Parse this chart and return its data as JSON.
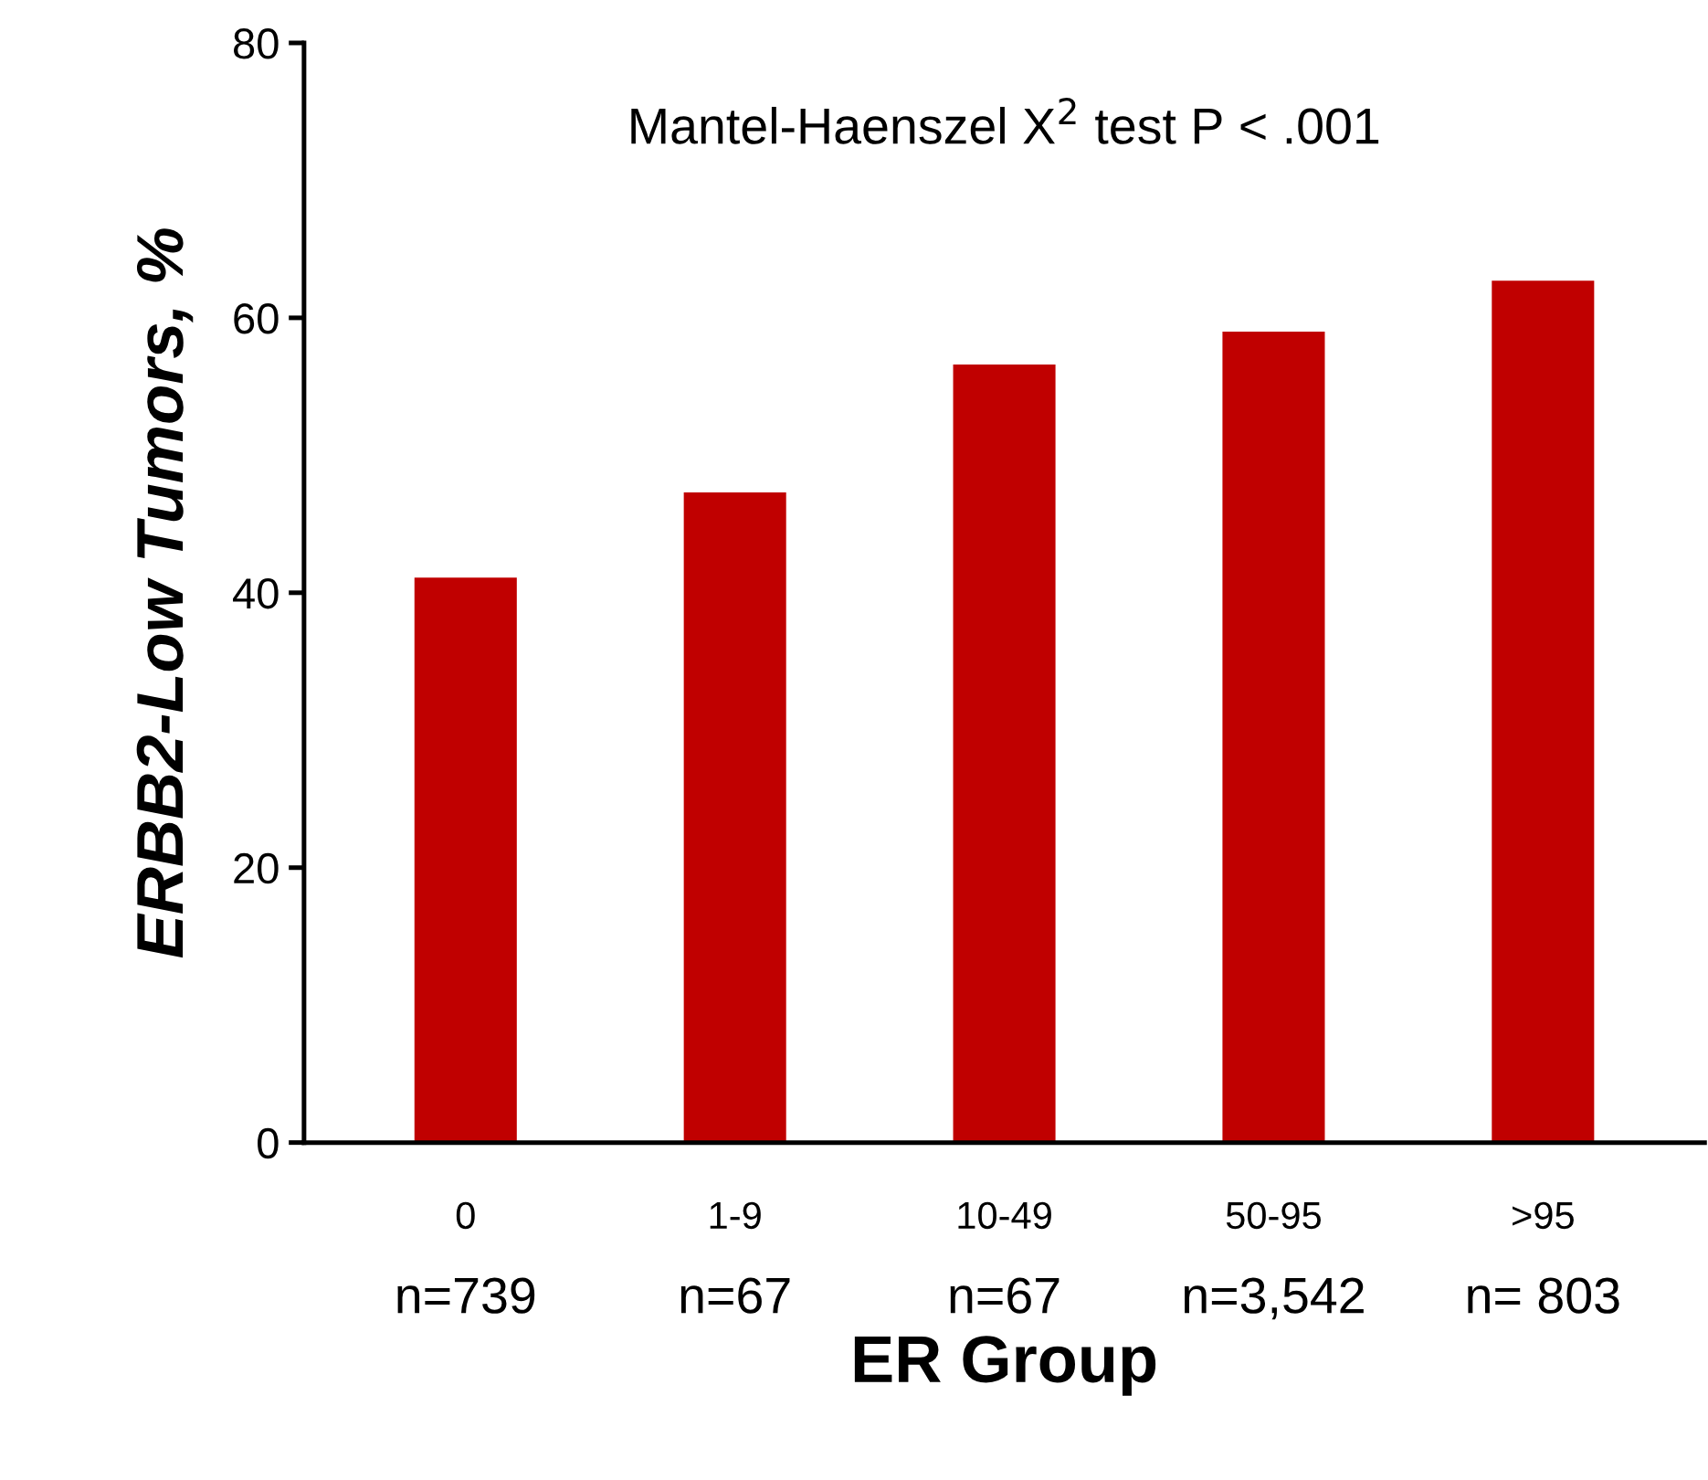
{
  "chart_data": {
    "type": "bar",
    "categories": [
      "0\nn=739",
      "1-9\nn=67",
      "10-49\nn=67",
      "50-95\nn=3,542",
      ">95\nn= 803"
    ],
    "values": [
      41.1,
      47.3,
      56.6,
      59.0,
      62.7
    ],
    "color": "#c00000",
    "xlabel": "ER Group",
    "ylabel": "ERBB2-Low Tumors, %",
    "annotations": [
      "Mantel-Haenszel X$^{2}$ test P < .001"
    ],
    "ylim": [
      0,
      80
    ],
    "yticks": [
      0,
      20,
      40,
      60,
      80
    ],
    "grid": false,
    "legend": false
  }
}
